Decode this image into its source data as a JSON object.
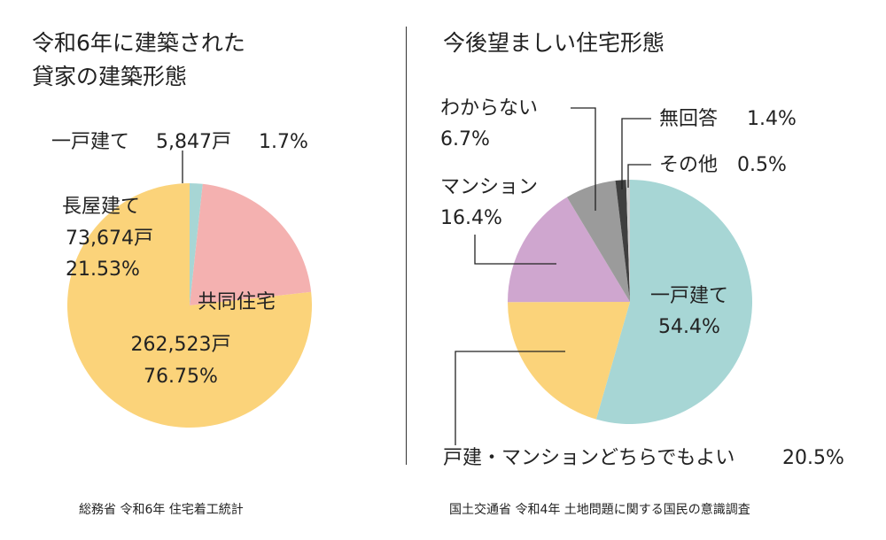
{
  "left": {
    "title_lines": [
      "令和6年に建築された",
      "貸家の建築形態"
    ],
    "source": "総務省 令和6年 住宅着工統計"
  },
  "right": {
    "title": "今後望ましい住宅形態",
    "source": "国土交通省 令和4年 土地問題に関する国民の意識調査"
  },
  "chart_data": [
    {
      "type": "pie",
      "title": "令和6年に建築された貸家の建築形態",
      "slices": [
        {
          "name": "共同住宅",
          "value": 76.75,
          "count": "262,523戸",
          "value_label": "76.75%",
          "color": "#fbd37a"
        },
        {
          "name": "長屋建て",
          "value": 21.53,
          "count": "73,674戸",
          "value_label": "21.53%",
          "color": "#f4b1b0"
        },
        {
          "name": "一戸建て",
          "value": 1.7,
          "count": "5,847戸",
          "value_label": "1.7%",
          "color": "#a7d6d5"
        }
      ]
    },
    {
      "type": "pie",
      "title": "今後望ましい住宅形態",
      "slices": [
        {
          "name": "一戸建て",
          "value": 54.4,
          "value_label": "54.4%",
          "color": "#a7d6d5"
        },
        {
          "name": "戸建・マンションどちらでもよい",
          "value": 20.5,
          "value_label": "20.5%",
          "color": "#fbd37a"
        },
        {
          "name": "マンション",
          "value": 16.4,
          "value_label": "16.4%",
          "color": "#cfa6cf"
        },
        {
          "name": "わからない",
          "value": 6.7,
          "value_label": "6.7%",
          "color": "#9b9b9b"
        },
        {
          "name": "無回答",
          "value": 1.4,
          "value_label": "1.4%",
          "color": "#3f3f3f"
        },
        {
          "name": "その他",
          "value": 0.5,
          "value_label": "0.5%",
          "color": "#cfcfcf"
        }
      ]
    }
  ]
}
